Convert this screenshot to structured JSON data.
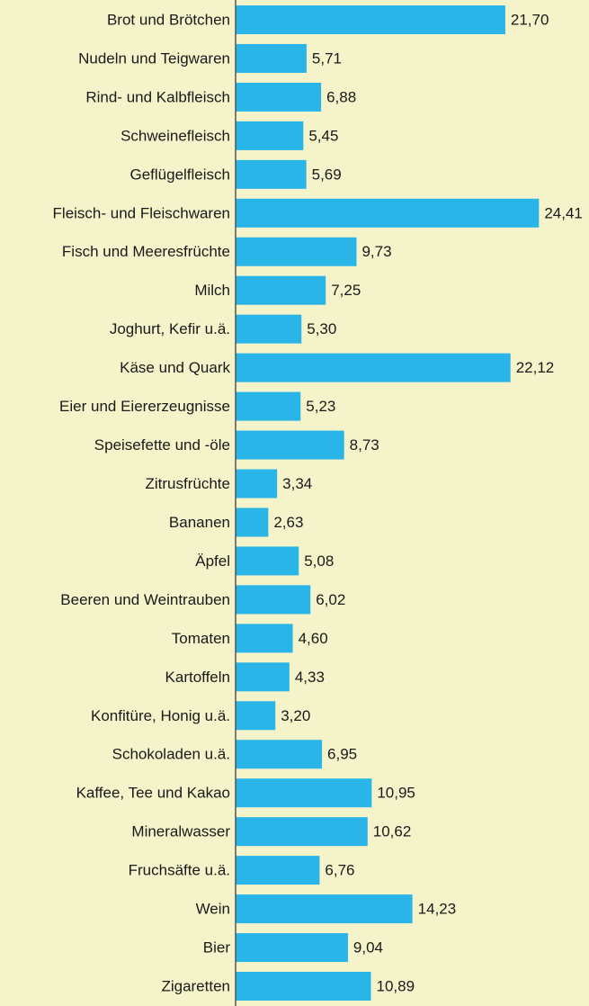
{
  "chart_data": {
    "type": "bar",
    "orientation": "horizontal",
    "color": "#29b5e8",
    "categories": [
      "Brot und Brötchen",
      "Nudeln und Teigwaren",
      "Rind- und Kalbfleisch",
      "Schweinefleisch",
      "Geflügelfleisch",
      "Fleisch- und Fleischwaren",
      "Fisch und Meeresfrüchte",
      "Milch",
      "Joghurt, Kefir u.ä.",
      "Käse und Quark",
      "Eier und Eiererzeugnisse",
      "Speisefette und -öle",
      "Zitrusfrüchte",
      "Bananen",
      "Äpfel",
      "Beeren und Weintrauben",
      "Tomaten",
      "Kartoffeln",
      "Konfitüre, Honig u.ä.",
      "Schokoladen u.ä.",
      "Kaffee, Tee und Kakao",
      "Mineralwasser",
      "Fruchsäfte u.ä.",
      "Wein",
      "Bier",
      "Zigaretten"
    ],
    "values": [
      21.7,
      5.71,
      6.88,
      5.45,
      5.69,
      24.41,
      9.73,
      7.25,
      5.3,
      22.12,
      5.23,
      8.73,
      3.34,
      2.63,
      5.08,
      6.02,
      4.6,
      4.33,
      3.2,
      6.95,
      10.95,
      10.62,
      6.76,
      14.23,
      9.04,
      10.89
    ],
    "value_labels": [
      "21,70",
      "5,71",
      "6,88",
      "5,45",
      "5,69",
      "24,41",
      "9,73",
      "7,25",
      "5,30",
      "22,12",
      "5,23",
      "8,73",
      "3,34",
      "2,63",
      "5,08",
      "6,02",
      "4,60",
      "4,33",
      "3,20",
      "6,95",
      "10,95",
      "10,62",
      "6,76",
      "14,23",
      "9,04",
      "10,89"
    ]
  }
}
